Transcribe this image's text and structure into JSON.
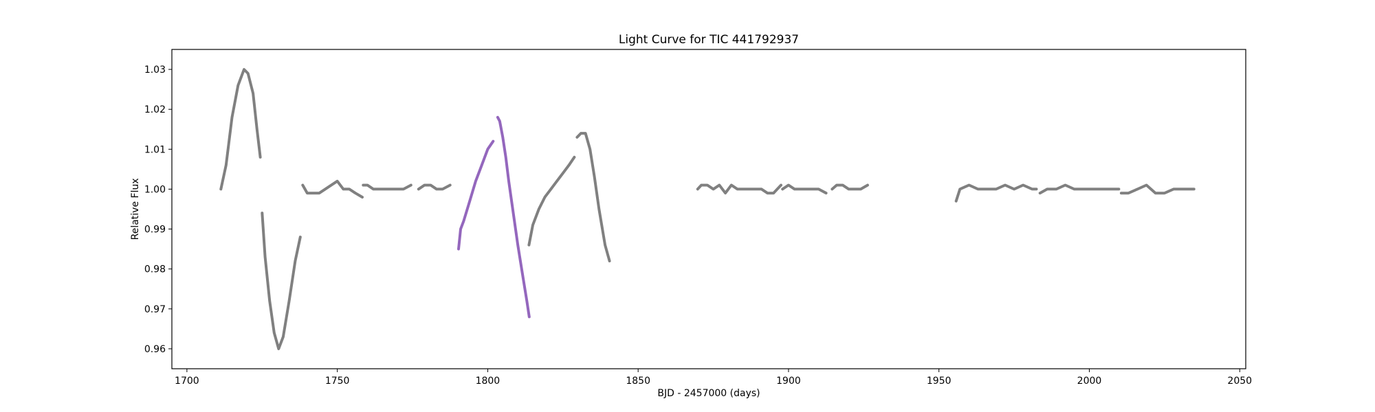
{
  "chart_data": {
    "type": "scatter",
    "title": "Light Curve for TIC 441792937",
    "xlabel": "BJD - 2457000 (days)",
    "ylabel": "Relative Flux",
    "xlim": [
      1695,
      2052
    ],
    "ylim": [
      0.955,
      1.035
    ],
    "xticks": [
      1700,
      1750,
      1800,
      1850,
      1900,
      1950,
      2000,
      2050
    ],
    "yticks": [
      0.96,
      0.97,
      0.98,
      0.99,
      1.0,
      1.01,
      1.02,
      1.03
    ],
    "ytick_labels": [
      "0.96",
      "0.97",
      "0.98",
      "0.99",
      "1.00",
      "1.01",
      "1.02",
      "1.03"
    ],
    "grid": false,
    "legend": false,
    "series": [
      {
        "color": "#808080",
        "segments": [
          {
            "x": [
              1711.3,
              1713,
              1715,
              1717,
              1719,
              1720.3,
              1722,
              1723.3,
              1724.4
            ],
            "y": [
              1.0,
              1.006,
              1.018,
              1.026,
              1.03,
              1.029,
              1.024,
              1.015,
              1.008
            ]
          },
          {
            "x": [
              1725.0,
              1726,
              1727.5,
              1729,
              1730.5,
              1732,
              1734,
              1736,
              1737.7
            ],
            "y": [
              0.994,
              0.983,
              0.972,
              0.964,
              0.96,
              0.963,
              0.972,
              0.982,
              0.988
            ]
          },
          {
            "x": [
              1738.5,
              1740,
              1742,
              1744,
              1746,
              1748,
              1750,
              1752,
              1754,
              1756,
              1758.3
            ],
            "y": [
              1.001,
              0.999,
              0.999,
              0.999,
              1.0,
              1.001,
              1.002,
              1.0,
              1.0,
              0.999,
              0.998
            ]
          },
          {
            "x": [
              1758.6,
              1760,
              1762,
              1764,
              1766,
              1768,
              1770,
              1772,
              1774.5
            ],
            "y": [
              1.001,
              1.001,
              1.0,
              1.0,
              1.0,
              1.0,
              1.0,
              1.0,
              1.001
            ]
          },
          {
            "x": [
              1777.0,
              1779,
              1781,
              1783,
              1785,
              1787.5
            ],
            "y": [
              1.0,
              1.001,
              1.001,
              1.0,
              1.0,
              1.001
            ]
          },
          {
            "x": [
              1813.7,
              1815,
              1817,
              1819,
              1821,
              1823,
              1825,
              1827,
              1828.8
            ],
            "y": [
              0.986,
              0.991,
              0.995,
              0.998,
              1.0,
              1.002,
              1.004,
              1.006,
              1.008
            ]
          },
          {
            "x": [
              1829.7,
              1831,
              1832.5,
              1834,
              1835.5,
              1837,
              1839,
              1840.5
            ],
            "y": [
              1.013,
              1.014,
              1.014,
              1.01,
              1.003,
              0.995,
              0.986,
              0.982
            ]
          },
          {
            "x": [
              1869.8,
              1871,
              1873,
              1875,
              1877,
              1879,
              1881,
              1883,
              1885,
              1887,
              1889,
              1891,
              1893,
              1895,
              1897.5
            ],
            "y": [
              1.0,
              1.001,
              1.001,
              1.0,
              1.001,
              0.999,
              1.001,
              1.0,
              1.0,
              1.0,
              1.0,
              1.0,
              0.999,
              0.999,
              1.001
            ]
          },
          {
            "x": [
              1898.0,
              1900,
              1902,
              1904,
              1906,
              1908,
              1910,
              1912.5
            ],
            "y": [
              1.0,
              1.001,
              1.0,
              1.0,
              1.0,
              1.0,
              1.0,
              0.999
            ]
          },
          {
            "x": [
              1914.5,
              1916,
              1918,
              1920,
              1922,
              1924,
              1926.3
            ],
            "y": [
              1.0,
              1.001,
              1.001,
              1.0,
              1.0,
              1.0,
              1.001
            ]
          },
          {
            "x": [
              1955.7,
              1957,
              1960,
              1963,
              1966,
              1969,
              1972,
              1975,
              1978,
              1981,
              1982.4
            ],
            "y": [
              0.997,
              1.0,
              1.001,
              1.0,
              1.0,
              1.0,
              1.001,
              1.0,
              1.001,
              1.0,
              1.0
            ]
          },
          {
            "x": [
              1983.6,
              1986,
              1989,
              1992,
              1995,
              1998,
              2001,
              2004,
              2007,
              2009.8
            ],
            "y": [
              0.999,
              1.0,
              1.0,
              1.001,
              1.0,
              1.0,
              1.0,
              1.0,
              1.0,
              1.0
            ]
          },
          {
            "x": [
              2010.6,
              2013,
              2016,
              2019,
              2022,
              2025,
              2028,
              2031,
              2034.8
            ],
            "y": [
              0.999,
              0.999,
              1.0,
              1.001,
              0.999,
              0.999,
              1.0,
              1.0,
              1.0
            ]
          }
        ]
      },
      {
        "color": "#9467bd",
        "segments": [
          {
            "x": [
              1790.3,
              1791,
              1792,
              1794,
              1796,
              1798,
              1800,
              1801.8
            ],
            "y": [
              0.985,
              0.99,
              0.992,
              0.997,
              1.002,
              1.006,
              1.01,
              1.012
            ]
          },
          {
            "x": [
              1803.3,
              1804,
              1805,
              1806,
              1807,
              1808.5,
              1810,
              1811.5,
              1813,
              1813.8
            ],
            "y": [
              1.018,
              1.017,
              1.013,
              1.008,
              1.002,
              0.994,
              0.986,
              0.979,
              0.972,
              0.968
            ]
          }
        ]
      }
    ]
  }
}
